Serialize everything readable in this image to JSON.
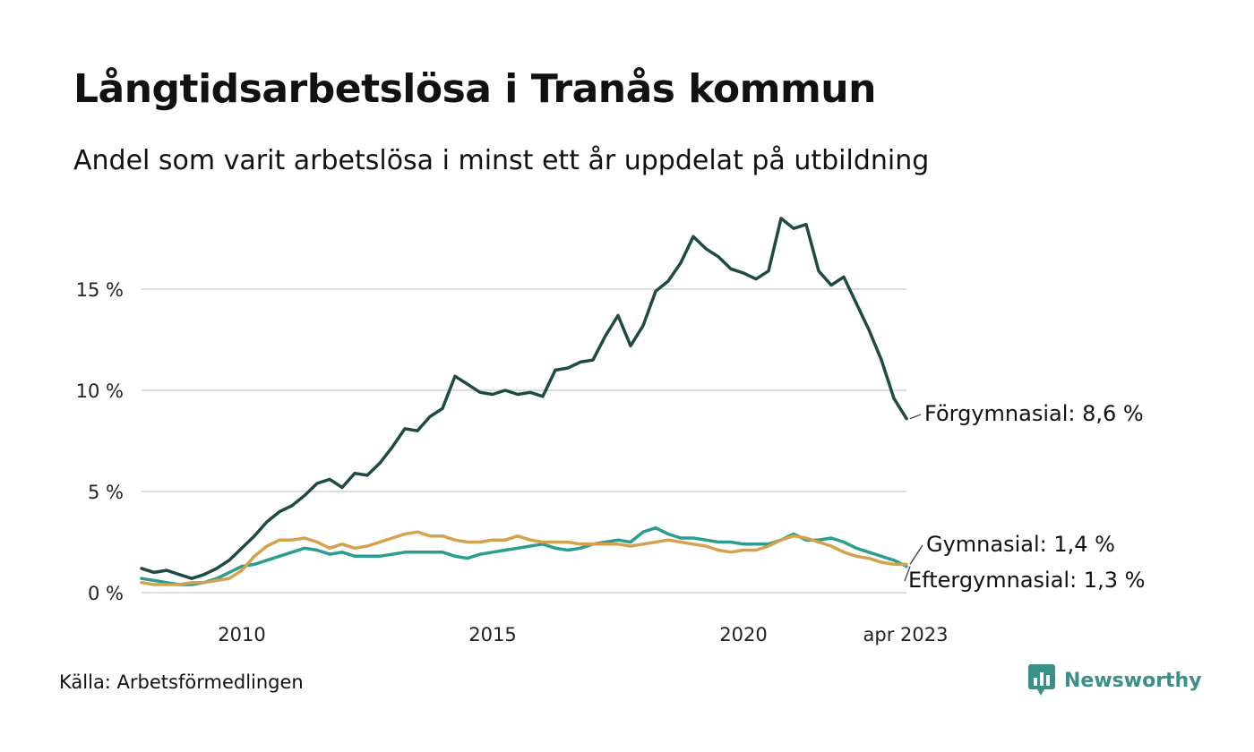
{
  "title": "Långtidsarbetslösa i Tranås kommun",
  "subtitle": "Andel som varit arbetslösa i minst ett år uppdelat på utbildning",
  "source": "Källa: Arbetsförmedlingen",
  "brand": "Newsworthy",
  "brand_icon": "newsworthy-logo-icon",
  "chart_data": {
    "type": "line",
    "title": "Långtidsarbetslösa i Tranås kommun",
    "subtitle": "Andel som varit arbetslösa i minst ett år uppdelat på utbildning",
    "ylim": [
      0,
      18.5
    ],
    "yticks": [
      0,
      5,
      10,
      15
    ],
    "ytick_labels": [
      "0 %",
      "5 %",
      "10 %",
      "15 %"
    ],
    "xticks": [
      2010,
      2015,
      2020,
      2023.25
    ],
    "xtick_labels": [
      "2010",
      "2015",
      "2020",
      "apr 2023"
    ],
    "grid": "horizontal",
    "colors": {
      "Förgymnasial": "#1f4a44",
      "Gymnasial": "#d4a24c",
      "Eftergymnasial": "#2a9d8f"
    },
    "series": [
      {
        "name": "Förgymnasial",
        "end_label": "Förgymnasial: 8,6 %",
        "color": "#1f4a44",
        "points": [
          [
            2008.0,
            1.2
          ],
          [
            2008.25,
            1.0
          ],
          [
            2008.5,
            1.1
          ],
          [
            2008.75,
            0.9
          ],
          [
            2009.0,
            0.7
          ],
          [
            2009.25,
            0.9
          ],
          [
            2009.5,
            1.2
          ],
          [
            2009.75,
            1.6
          ],
          [
            2010.0,
            2.2
          ],
          [
            2010.25,
            2.8
          ],
          [
            2010.5,
            3.5
          ],
          [
            2010.75,
            4.0
          ],
          [
            2011.0,
            4.3
          ],
          [
            2011.25,
            4.8
          ],
          [
            2011.5,
            5.4
          ],
          [
            2011.75,
            5.6
          ],
          [
            2012.0,
            5.2
          ],
          [
            2012.25,
            5.9
          ],
          [
            2012.5,
            5.8
          ],
          [
            2012.75,
            6.4
          ],
          [
            2013.0,
            7.2
          ],
          [
            2013.25,
            8.1
          ],
          [
            2013.5,
            8.0
          ],
          [
            2013.75,
            8.7
          ],
          [
            2014.0,
            9.1
          ],
          [
            2014.25,
            10.7
          ],
          [
            2014.5,
            10.3
          ],
          [
            2014.75,
            9.9
          ],
          [
            2015.0,
            9.8
          ],
          [
            2015.25,
            10.0
          ],
          [
            2015.5,
            9.8
          ],
          [
            2015.75,
            9.9
          ],
          [
            2016.0,
            9.7
          ],
          [
            2016.25,
            11.0
          ],
          [
            2016.5,
            11.1
          ],
          [
            2016.75,
            11.4
          ],
          [
            2017.0,
            11.5
          ],
          [
            2017.25,
            12.7
          ],
          [
            2017.5,
            13.7
          ],
          [
            2017.75,
            12.2
          ],
          [
            2018.0,
            13.2
          ],
          [
            2018.25,
            14.9
          ],
          [
            2018.5,
            15.4
          ],
          [
            2018.75,
            16.3
          ],
          [
            2019.0,
            17.6
          ],
          [
            2019.25,
            17.0
          ],
          [
            2019.5,
            16.6
          ],
          [
            2019.75,
            16.0
          ],
          [
            2020.0,
            15.8
          ],
          [
            2020.25,
            15.5
          ],
          [
            2020.5,
            15.9
          ],
          [
            2020.75,
            18.5
          ],
          [
            2021.0,
            18.0
          ],
          [
            2021.25,
            18.2
          ],
          [
            2021.5,
            15.9
          ],
          [
            2021.75,
            15.2
          ],
          [
            2022.0,
            15.6
          ],
          [
            2022.25,
            14.3
          ],
          [
            2022.5,
            13.0
          ],
          [
            2022.75,
            11.5
          ],
          [
            2023.0,
            9.6
          ],
          [
            2023.25,
            8.6
          ]
        ]
      },
      {
        "name": "Gymnasial",
        "end_label": "Gymnasial: 1,4 %",
        "color": "#d4a24c",
        "points": [
          [
            2008.0,
            0.5
          ],
          [
            2008.25,
            0.4
          ],
          [
            2008.5,
            0.4
          ],
          [
            2008.75,
            0.4
          ],
          [
            2009.0,
            0.5
          ],
          [
            2009.25,
            0.5
          ],
          [
            2009.5,
            0.6
          ],
          [
            2009.75,
            0.7
          ],
          [
            2010.0,
            1.1
          ],
          [
            2010.25,
            1.8
          ],
          [
            2010.5,
            2.3
          ],
          [
            2010.75,
            2.6
          ],
          [
            2011.0,
            2.6
          ],
          [
            2011.25,
            2.7
          ],
          [
            2011.5,
            2.5
          ],
          [
            2011.75,
            2.2
          ],
          [
            2012.0,
            2.4
          ],
          [
            2012.25,
            2.2
          ],
          [
            2012.5,
            2.3
          ],
          [
            2012.75,
            2.5
          ],
          [
            2013.0,
            2.7
          ],
          [
            2013.25,
            2.9
          ],
          [
            2013.5,
            3.0
          ],
          [
            2013.75,
            2.8
          ],
          [
            2014.0,
            2.8
          ],
          [
            2014.25,
            2.6
          ],
          [
            2014.5,
            2.5
          ],
          [
            2014.75,
            2.5
          ],
          [
            2015.0,
            2.6
          ],
          [
            2015.25,
            2.6
          ],
          [
            2015.5,
            2.8
          ],
          [
            2015.75,
            2.6
          ],
          [
            2016.0,
            2.5
          ],
          [
            2016.25,
            2.5
          ],
          [
            2016.5,
            2.5
          ],
          [
            2016.75,
            2.4
          ],
          [
            2017.0,
            2.4
          ],
          [
            2017.25,
            2.4
          ],
          [
            2017.5,
            2.4
          ],
          [
            2017.75,
            2.3
          ],
          [
            2018.0,
            2.4
          ],
          [
            2018.25,
            2.5
          ],
          [
            2018.5,
            2.6
          ],
          [
            2018.75,
            2.5
          ],
          [
            2019.0,
            2.4
          ],
          [
            2019.25,
            2.3
          ],
          [
            2019.5,
            2.1
          ],
          [
            2019.75,
            2.0
          ],
          [
            2020.0,
            2.1
          ],
          [
            2020.25,
            2.1
          ],
          [
            2020.5,
            2.3
          ],
          [
            2020.75,
            2.6
          ],
          [
            2021.0,
            2.8
          ],
          [
            2021.25,
            2.7
          ],
          [
            2021.5,
            2.5
          ],
          [
            2021.75,
            2.3
          ],
          [
            2022.0,
            2.0
          ],
          [
            2022.25,
            1.8
          ],
          [
            2022.5,
            1.7
          ],
          [
            2022.75,
            1.5
          ],
          [
            2023.0,
            1.4
          ],
          [
            2023.25,
            1.4
          ]
        ]
      },
      {
        "name": "Eftergymnasial",
        "end_label": "Eftergymnasial: 1,3 %",
        "color": "#2a9d8f",
        "points": [
          [
            2008.0,
            0.7
          ],
          [
            2008.25,
            0.6
          ],
          [
            2008.5,
            0.5
          ],
          [
            2008.75,
            0.4
          ],
          [
            2009.0,
            0.4
          ],
          [
            2009.25,
            0.5
          ],
          [
            2009.5,
            0.7
          ],
          [
            2009.75,
            1.0
          ],
          [
            2010.0,
            1.3
          ],
          [
            2010.25,
            1.4
          ],
          [
            2010.5,
            1.6
          ],
          [
            2010.75,
            1.8
          ],
          [
            2011.0,
            2.0
          ],
          [
            2011.25,
            2.2
          ],
          [
            2011.5,
            2.1
          ],
          [
            2011.75,
            1.9
          ],
          [
            2012.0,
            2.0
          ],
          [
            2012.25,
            1.8
          ],
          [
            2012.5,
            1.8
          ],
          [
            2012.75,
            1.8
          ],
          [
            2013.0,
            1.9
          ],
          [
            2013.25,
            2.0
          ],
          [
            2013.5,
            2.0
          ],
          [
            2013.75,
            2.0
          ],
          [
            2014.0,
            2.0
          ],
          [
            2014.25,
            1.8
          ],
          [
            2014.5,
            1.7
          ],
          [
            2014.75,
            1.9
          ],
          [
            2015.0,
            2.0
          ],
          [
            2015.25,
            2.1
          ],
          [
            2015.5,
            2.2
          ],
          [
            2015.75,
            2.3
          ],
          [
            2016.0,
            2.4
          ],
          [
            2016.25,
            2.2
          ],
          [
            2016.5,
            2.1
          ],
          [
            2016.75,
            2.2
          ],
          [
            2017.0,
            2.4
          ],
          [
            2017.25,
            2.5
          ],
          [
            2017.5,
            2.6
          ],
          [
            2017.75,
            2.5
          ],
          [
            2018.0,
            3.0
          ],
          [
            2018.25,
            3.2
          ],
          [
            2018.5,
            2.9
          ],
          [
            2018.75,
            2.7
          ],
          [
            2019.0,
            2.7
          ],
          [
            2019.25,
            2.6
          ],
          [
            2019.5,
            2.5
          ],
          [
            2019.75,
            2.5
          ],
          [
            2020.0,
            2.4
          ],
          [
            2020.25,
            2.4
          ],
          [
            2020.5,
            2.4
          ],
          [
            2020.75,
            2.6
          ],
          [
            2021.0,
            2.9
          ],
          [
            2021.25,
            2.6
          ],
          [
            2021.5,
            2.6
          ],
          [
            2021.75,
            2.7
          ],
          [
            2022.0,
            2.5
          ],
          [
            2022.25,
            2.2
          ],
          [
            2022.5,
            2.0
          ],
          [
            2022.75,
            1.8
          ],
          [
            2023.0,
            1.6
          ],
          [
            2023.25,
            1.3
          ]
        ]
      }
    ]
  }
}
